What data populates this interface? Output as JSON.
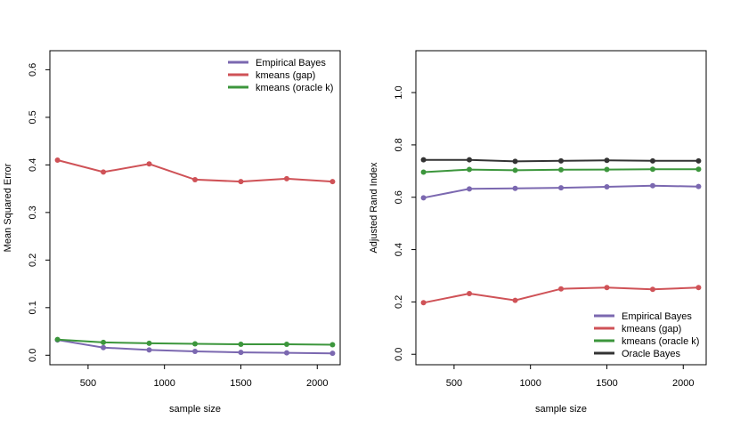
{
  "colors": {
    "empirical_bayes": "#7b68b0",
    "kmeans_gap": "#cf5257",
    "kmeans_oracle": "#3c963c",
    "oracle_bayes": "#333333"
  },
  "chart_data": [
    {
      "type": "line",
      "xlabel": "sample size",
      "ylabel": "Mean Squared Error",
      "xticks": [
        500,
        1000,
        1500,
        2000
      ],
      "yticks": [
        0.0,
        0.1,
        0.2,
        0.3,
        0.4,
        0.5,
        0.6
      ],
      "ytick_labels": [
        "0.0",
        "0.1",
        "0.2",
        "0.3",
        "0.4",
        "0.5",
        "0.6"
      ],
      "xlim": [
        250,
        2150
      ],
      "ylim": [
        -0.02,
        0.64
      ],
      "legend_position": "top-right",
      "x": [
        300,
        600,
        900,
        1200,
        1500,
        1800,
        2100
      ],
      "series": [
        {
          "name": "Empirical Bayes",
          "color_key": "empirical_bayes",
          "values": [
            0.032,
            0.016,
            0.011,
            0.008,
            0.006,
            0.005,
            0.004
          ]
        },
        {
          "name": "kmeans (gap)",
          "color_key": "kmeans_gap",
          "values": [
            0.41,
            0.385,
            0.402,
            0.369,
            0.365,
            0.371,
            0.365
          ]
        },
        {
          "name": "kmeans (oracle k)",
          "color_key": "kmeans_oracle",
          "values": [
            0.033,
            0.027,
            0.025,
            0.024,
            0.023,
            0.023,
            0.022
          ]
        }
      ]
    },
    {
      "type": "line",
      "xlabel": "sample size",
      "ylabel": "Adjusted Rand Index",
      "xticks": [
        500,
        1000,
        1500,
        2000
      ],
      "yticks": [
        0.0,
        0.2,
        0.4,
        0.6,
        0.8,
        1.0
      ],
      "ytick_labels": [
        "0.0",
        "0.2",
        "0.4",
        "0.6",
        "0.8",
        "1.0"
      ],
      "xlim": [
        250,
        2150
      ],
      "ylim": [
        -0.04,
        1.16
      ],
      "legend_position": "bottom-right",
      "x": [
        300,
        600,
        900,
        1200,
        1500,
        1800,
        2100
      ],
      "series": [
        {
          "name": "Empirical Bayes",
          "color_key": "empirical_bayes",
          "values": [
            0.598,
            0.632,
            0.634,
            0.636,
            0.64,
            0.644,
            0.641
          ]
        },
        {
          "name": "kmeans (gap)",
          "color_key": "kmeans_gap",
          "values": [
            0.197,
            0.232,
            0.206,
            0.25,
            0.255,
            0.248,
            0.255
          ]
        },
        {
          "name": "kmeans (oracle k)",
          "color_key": "kmeans_oracle",
          "values": [
            0.696,
            0.706,
            0.703,
            0.705,
            0.706,
            0.707,
            0.707
          ]
        },
        {
          "name": "Oracle Bayes",
          "color_key": "oracle_bayes",
          "values": [
            0.743,
            0.743,
            0.737,
            0.739,
            0.741,
            0.739,
            0.739
          ]
        }
      ]
    }
  ]
}
